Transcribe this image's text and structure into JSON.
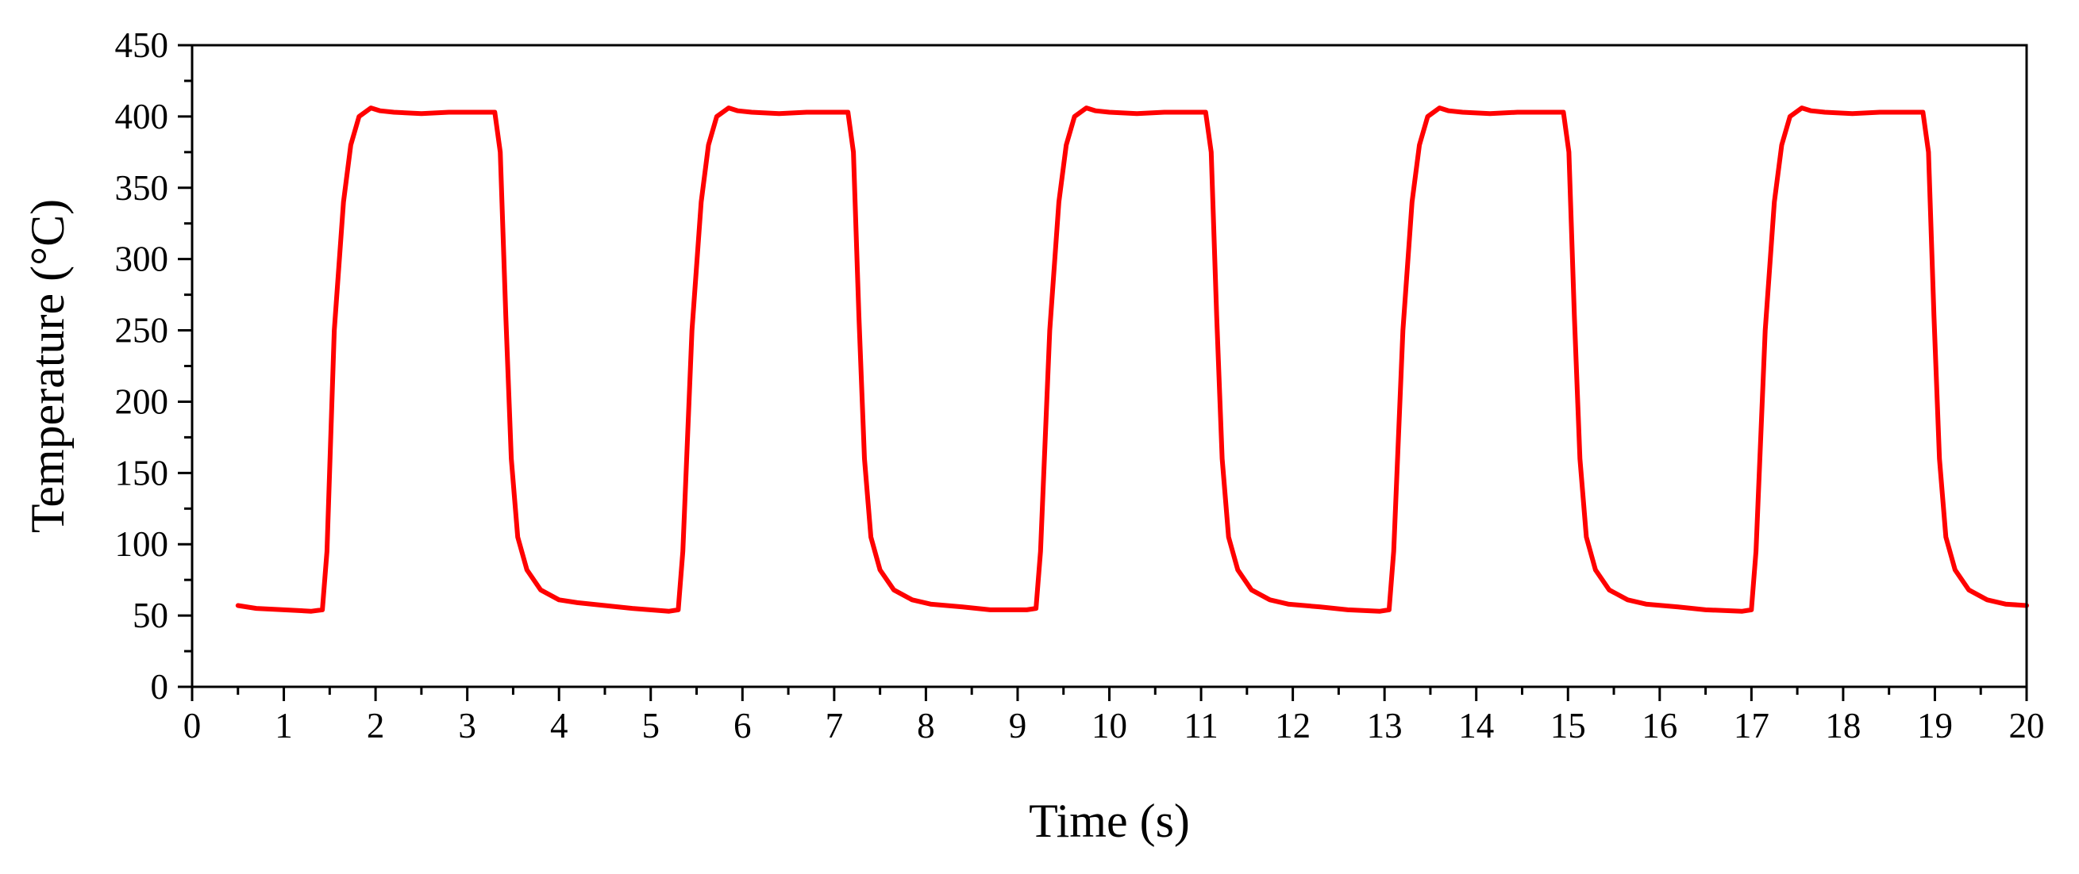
{
  "chart_data": {
    "type": "line",
    "title": "",
    "xlabel": "Time (s)",
    "ylabel": "Temperature (°C)",
    "xlim": [
      0,
      20
    ],
    "ylim": [
      0,
      450
    ],
    "grid": false,
    "legend": "none",
    "x_ticks": [
      0,
      1,
      2,
      3,
      4,
      5,
      6,
      7,
      8,
      9,
      10,
      11,
      12,
      13,
      14,
      15,
      16,
      17,
      18,
      19,
      20
    ],
    "y_ticks": [
      0,
      50,
      100,
      150,
      200,
      250,
      300,
      350,
      400,
      450
    ],
    "series": [
      {
        "name": "Temperature",
        "color": "#ff0000",
        "x": [
          0.5,
          0.7,
          1.0,
          1.3,
          1.42,
          1.47,
          1.55,
          1.65,
          1.73,
          1.82,
          1.95,
          2.05,
          2.2,
          2.5,
          2.8,
          3.1,
          3.3,
          3.36,
          3.42,
          3.48,
          3.55,
          3.65,
          3.8,
          4.0,
          4.2,
          4.5,
          4.8,
          5.2,
          5.3,
          5.35,
          5.45,
          5.55,
          5.63,
          5.72,
          5.85,
          5.95,
          6.1,
          6.4,
          6.7,
          7.0,
          7.15,
          7.21,
          7.27,
          7.33,
          7.4,
          7.5,
          7.65,
          7.85,
          8.05,
          8.4,
          8.7,
          9.1,
          9.2,
          9.25,
          9.35,
          9.45,
          9.53,
          9.62,
          9.75,
          9.85,
          10.0,
          10.3,
          10.6,
          10.9,
          11.05,
          11.11,
          11.17,
          11.23,
          11.3,
          11.4,
          11.55,
          11.75,
          11.95,
          12.3,
          12.6,
          12.95,
          13.05,
          13.1,
          13.2,
          13.3,
          13.38,
          13.47,
          13.6,
          13.7,
          13.85,
          14.15,
          14.45,
          14.8,
          14.95,
          15.01,
          15.07,
          15.13,
          15.2,
          15.3,
          15.45,
          15.65,
          15.85,
          16.2,
          16.5,
          16.9,
          17.0,
          17.05,
          17.15,
          17.25,
          17.33,
          17.42,
          17.55,
          17.65,
          17.8,
          18.1,
          18.4,
          18.75,
          18.87,
          18.93,
          18.99,
          19.05,
          19.12,
          19.22,
          19.37,
          19.57,
          19.77,
          20.0
        ],
        "values": [
          57,
          55,
          54,
          53,
          54,
          95,
          250,
          340,
          380,
          400,
          406,
          404,
          403,
          402,
          403,
          403,
          403,
          375,
          260,
          160,
          105,
          82,
          68,
          61,
          59,
          57,
          55,
          53,
          54,
          95,
          250,
          340,
          380,
          400,
          406,
          404,
          403,
          402,
          403,
          403,
          403,
          375,
          260,
          160,
          105,
          82,
          68,
          61,
          58,
          56,
          54,
          54,
          55,
          95,
          250,
          340,
          380,
          400,
          406,
          404,
          403,
          402,
          403,
          403,
          403,
          375,
          260,
          160,
          105,
          82,
          68,
          61,
          58,
          56,
          54,
          53,
          54,
          95,
          250,
          340,
          380,
          400,
          406,
          404,
          403,
          402,
          403,
          403,
          403,
          375,
          260,
          160,
          105,
          82,
          68,
          61,
          58,
          56,
          54,
          53,
          54,
          95,
          250,
          340,
          380,
          400,
          406,
          404,
          403,
          402,
          403,
          403,
          403,
          375,
          260,
          160,
          105,
          82,
          68,
          61,
          58,
          57
        ]
      }
    ]
  }
}
